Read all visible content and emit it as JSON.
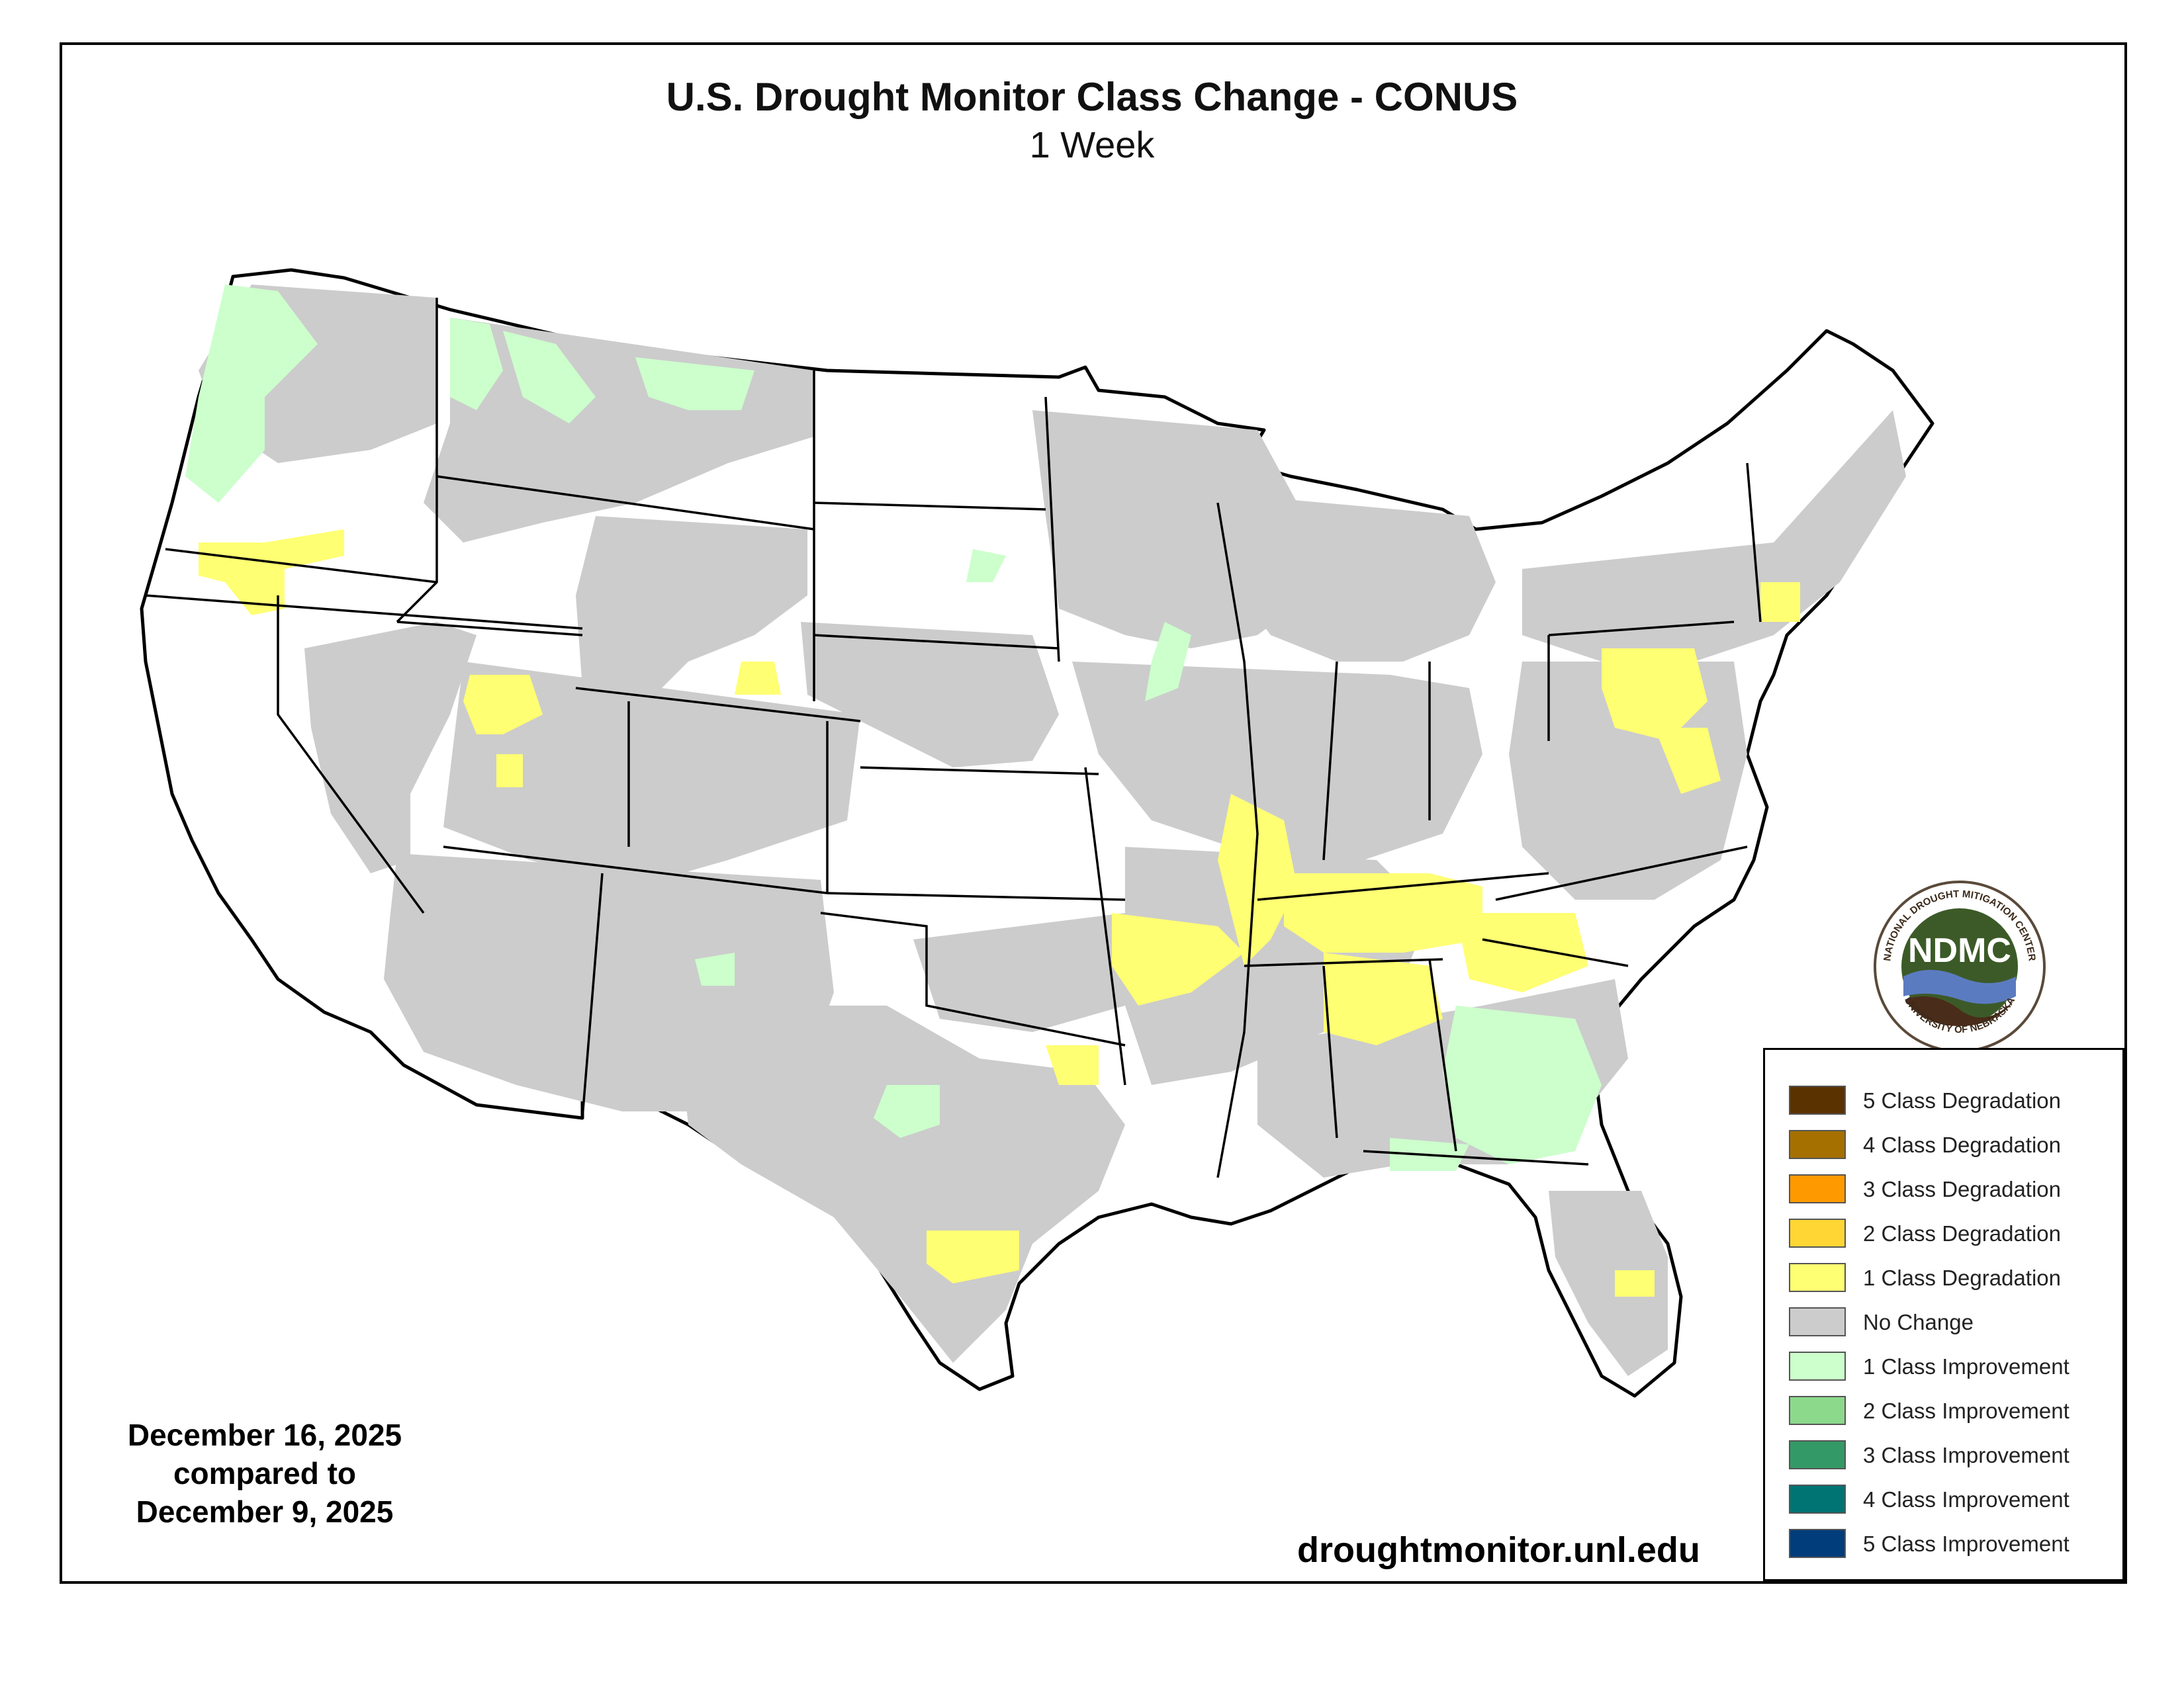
{
  "title": "U.S. Drought Monitor Class Change - CONUS",
  "subtitle": "1 Week",
  "date_block": {
    "line1": "December 16, 2025",
    "line2": "compared to",
    "line3": "December 9, 2025"
  },
  "website": "droughtmonitor.unl.edu",
  "logo": {
    "acronym": "NDMC",
    "ring_top": "NATIONAL DROUGHT MITIGATION CENTER",
    "ring_bottom": "UNIVERSITY OF NEBRASKA"
  },
  "legend": [
    {
      "label": "5 Class Degradation",
      "color": "#5a3200"
    },
    {
      "label": "4 Class Degradation",
      "color": "#a67000"
    },
    {
      "label": "3 Class Degradation",
      "color": "#ff9900"
    },
    {
      "label": "2 Class Degradation",
      "color": "#ffd633"
    },
    {
      "label": "1 Class Degradation",
      "color": "#ffff73"
    },
    {
      "label": "No Change",
      "color": "#cccccc"
    },
    {
      "label": "1 Class Improvement",
      "color": "#ccffcc"
    },
    {
      "label": "2 Class Improvement",
      "color": "#8cd98c"
    },
    {
      "label": "3 Class Improvement",
      "color": "#339966"
    },
    {
      "label": "4 Class Improvement",
      "color": "#007373"
    },
    {
      "label": "5 Class Improvement",
      "color": "#003d7a"
    }
  ],
  "map_colors": {
    "land": "#ffffff",
    "no_change": "#cccccc",
    "degradation_1": "#ffff73",
    "improvement_1": "#ccffcc",
    "border": "#000000"
  }
}
